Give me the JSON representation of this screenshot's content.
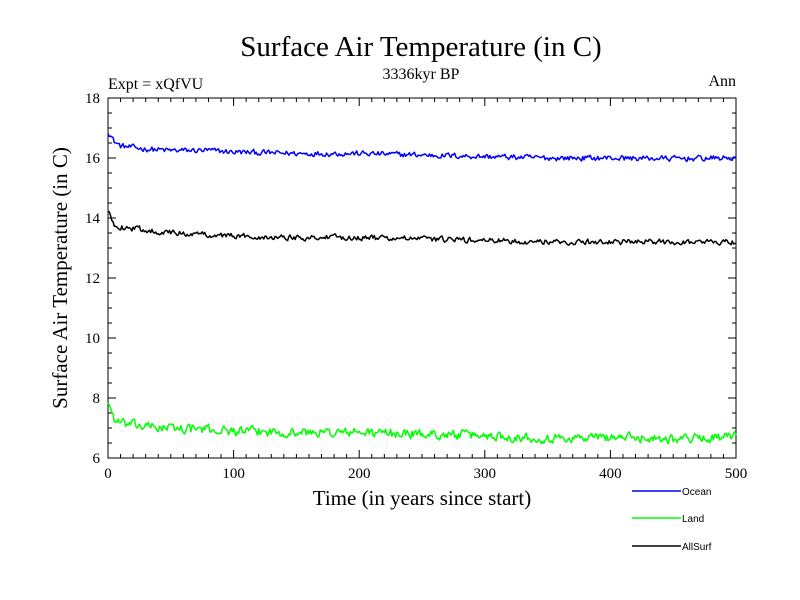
{
  "chart_data": {
    "type": "line",
    "title": "Surface Air Temperature (in C)",
    "subtitle": "3336kyr BP",
    "experiment_label": "Expt = xQfVU",
    "season_label": "Ann",
    "xlabel": "Time (in years since start)",
    "ylabel": "Surface Air Temperature (in C)",
    "xlim": [
      0,
      500
    ],
    "ylim": [
      6,
      18
    ],
    "x_ticks": [
      0,
      100,
      200,
      300,
      400,
      500
    ],
    "y_ticks": [
      6,
      8,
      10,
      12,
      14,
      16,
      18
    ],
    "x_tick_labels": [
      "0",
      "100",
      "200",
      "300",
      "400",
      "500"
    ],
    "y_tick_labels": [
      "6",
      "8",
      "10",
      "12",
      "14",
      "16",
      "18"
    ],
    "grid": false,
    "legend_position": "bottom-right",
    "series": [
      {
        "name": "Ocean",
        "color": "#0000ff",
        "x": [
          0,
          5,
          10,
          20,
          30,
          50,
          80,
          100,
          150,
          200,
          250,
          300,
          350,
          400,
          450,
          500
        ],
        "values": [
          16.9,
          16.55,
          16.4,
          16.35,
          16.3,
          16.25,
          16.25,
          16.2,
          16.15,
          16.15,
          16.1,
          16.05,
          16.0,
          16.0,
          15.98,
          16.0
        ],
        "noise": 0.13
      },
      {
        "name": "Land",
        "color": "#00ff00",
        "x": [
          0,
          5,
          10,
          20,
          30,
          50,
          80,
          100,
          150,
          200,
          250,
          300,
          350,
          400,
          450,
          500
        ],
        "values": [
          7.9,
          7.3,
          7.15,
          7.1,
          7.05,
          7.0,
          6.95,
          6.9,
          6.85,
          6.85,
          6.8,
          6.75,
          6.65,
          6.7,
          6.65,
          6.7
        ],
        "noise": 0.22
      },
      {
        "name": "AllSurf",
        "color": "#000000",
        "x": [
          0,
          5,
          10,
          20,
          30,
          50,
          80,
          100,
          150,
          200,
          250,
          300,
          350,
          400,
          450,
          500
        ],
        "values": [
          14.2,
          13.8,
          13.7,
          13.65,
          13.6,
          13.5,
          13.45,
          13.4,
          13.35,
          13.35,
          13.3,
          13.25,
          13.2,
          13.2,
          13.2,
          13.2
        ],
        "noise": 0.13
      }
    ]
  }
}
